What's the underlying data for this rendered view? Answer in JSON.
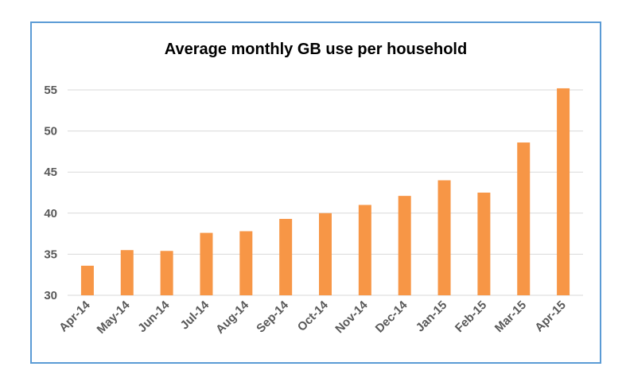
{
  "chart_data": {
    "type": "bar",
    "title": "Average monthly GB use per household",
    "xlabel": "",
    "ylabel": "",
    "categories": [
      "Apr-14",
      "May-14",
      "Jun-14",
      "Jul-14",
      "Aug-14",
      "Sep-14",
      "Oct-14",
      "Nov-14",
      "Dec-14",
      "Jan-15",
      "Feb-15",
      "Mar-15",
      "Apr-15"
    ],
    "values": [
      33.6,
      35.5,
      35.4,
      37.6,
      37.8,
      39.3,
      40.0,
      41.0,
      42.1,
      44.0,
      42.5,
      48.6,
      55.2
    ],
    "ylim": [
      30,
      55
    ],
    "yticks": [
      30,
      35,
      40,
      45,
      50,
      55
    ],
    "grid": true,
    "legend": "none",
    "colors": {
      "bar": "#f79646",
      "grid": "#d9d9d9",
      "axis_text": "#595959",
      "border": "#5b9bd5"
    }
  }
}
